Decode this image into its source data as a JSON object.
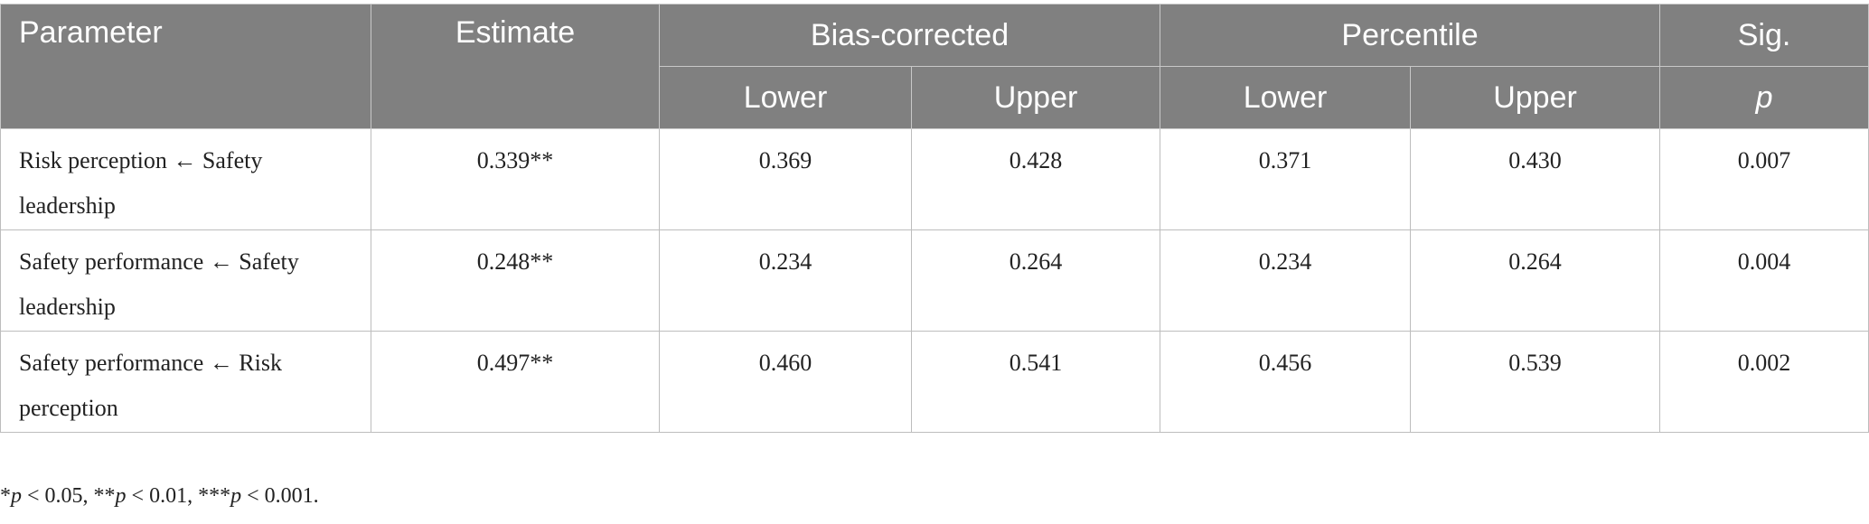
{
  "table": {
    "header": {
      "row1": [
        "Parameter",
        "Estimate",
        "Bias-corrected",
        "Percentile",
        "Sig."
      ],
      "row2": [
        "Lower",
        "Upper",
        "Lower",
        "Upper",
        "p"
      ]
    },
    "rows": [
      [
        "Risk perception ← Safety leadership",
        "0.339**",
        "0.369",
        "0.428",
        "0.371",
        "0.430",
        "0.007"
      ],
      [
        "Safety performance ← Safety leadership",
        "0.248**",
        "0.234",
        "0.264",
        "0.234",
        "0.264",
        "0.004"
      ],
      [
        "Safety performance ← Risk perception",
        "0.497**",
        "0.460",
        "0.541",
        "0.456",
        "0.539",
        "0.002"
      ]
    ]
  },
  "footnote": [
    "*",
    "p",
    " < 0.05, **",
    "p",
    " < 0.01, ***",
    "p",
    " < 0.001."
  ]
}
